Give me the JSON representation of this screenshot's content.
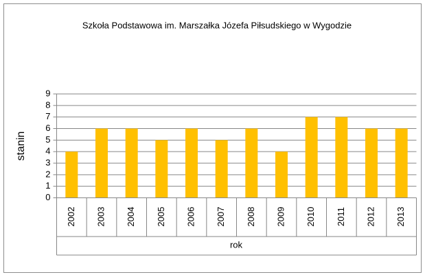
{
  "chart_data": {
    "type": "bar",
    "title": "Szkoła Podstawowa im. Marszałka Józefa Piłsudskiego w Wygodzie",
    "x_label": "rok",
    "y_label": "stanin",
    "categories": [
      "2002",
      "2003",
      "2004",
      "2005",
      "2006",
      "2007",
      "2008",
      "2009",
      "2010",
      "2011",
      "2012",
      "2013"
    ],
    "values": [
      4,
      6,
      6,
      5,
      6,
      5,
      6,
      4,
      7,
      7,
      6,
      6
    ],
    "color": "#ffc000",
    "ylim": [
      0,
      9
    ],
    "yticks": [
      0,
      1,
      2,
      3,
      4,
      5,
      6,
      7,
      8,
      9
    ],
    "grid": true
  }
}
